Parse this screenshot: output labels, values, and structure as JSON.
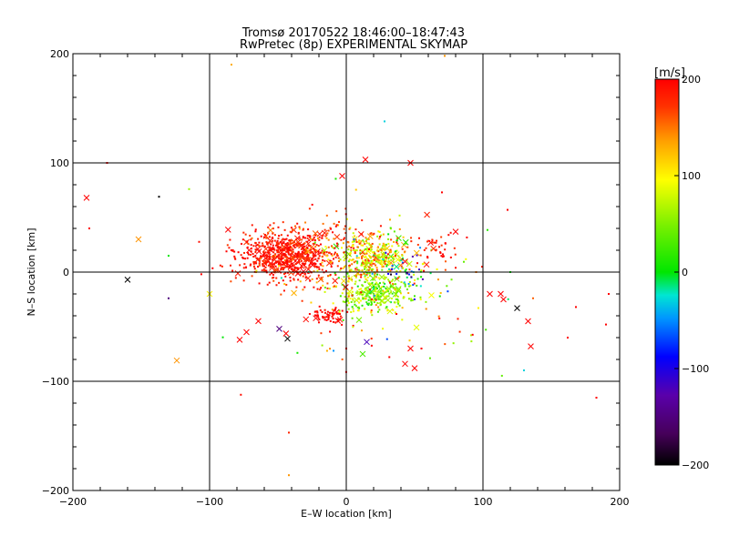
{
  "title_line1": "Tromsø 20170522 18:46:00–18:47:43",
  "title_line2": "RwPretec (8p) EXPERIMENTAL SKYMAP",
  "colorbar": {
    "unit_label": "[m/s]",
    "range": [
      -200,
      200
    ],
    "tick_values": [
      200,
      100,
      0,
      -100,
      -200
    ],
    "tick_labels": [
      "200",
      "100",
      "0",
      "−100",
      "−200"
    ],
    "colormap": "rainbow: black(-200) → purple → blue → cyan → green(0) → yellow → orange → red(200)"
  },
  "chart_data": {
    "type": "scatter",
    "xlabel": "E–W location [km]",
    "ylabel": "N–S location [km]",
    "xlim": [
      -200,
      200
    ],
    "ylim": [
      -200,
      200
    ],
    "x_ticks": [
      -200,
      -100,
      0,
      100,
      200
    ],
    "x_tick_labels": [
      "−200",
      "−100",
      "0",
      "100",
      "200"
    ],
    "y_ticks": [
      -200,
      -100,
      0,
      100,
      200
    ],
    "y_tick_labels": [
      "−200",
      "−100",
      "0",
      "100",
      "200"
    ],
    "grid": true,
    "grid_lines_x": [
      -100,
      0,
      100
    ],
    "grid_lines_y": [
      -100,
      0,
      100
    ],
    "markers": [
      "dot (small)",
      "x (large)"
    ],
    "approx_point_count": 1700,
    "clusters_estimated": [
      {
        "x": -45,
        "y": 15,
        "sx": 18,
        "sy": 11,
        "n": 650,
        "v": 190,
        "vs": 15
      },
      {
        "x": 18,
        "y": 14,
        "sx": 13,
        "sy": 11,
        "n": 320,
        "v": 90,
        "vs": 45
      },
      {
        "x": 20,
        "y": -20,
        "sx": 14,
        "sy": 9,
        "n": 280,
        "v": 60,
        "vs": 30
      },
      {
        "x": -10,
        "y": 20,
        "sx": 25,
        "sy": 18,
        "n": 180,
        "v": 170,
        "vs": 25
      },
      {
        "x": -14,
        "y": -40,
        "sx": 6,
        "sy": 4,
        "n": 60,
        "v": 200,
        "vs": 8
      },
      {
        "x": 68,
        "y": 20,
        "sx": 10,
        "sy": 8,
        "n": 40,
        "v": 190,
        "vs": 15
      },
      {
        "x": 45,
        "y": 0,
        "sx": 8,
        "sy": 8,
        "n": 50,
        "v": -20,
        "vs": 80
      },
      {
        "x": 25,
        "y": -15,
        "sx": 45,
        "sy": 35,
        "n": 120,
        "v": 120,
        "vs": 80
      }
    ],
    "outliers_estimated": [
      {
        "x": 14,
        "y": 103,
        "v": 200,
        "m": "x"
      },
      {
        "x": 47,
        "y": 100,
        "v": 200,
        "m": "x"
      },
      {
        "x": -3,
        "y": 88,
        "v": 200,
        "m": "x"
      },
      {
        "x": -175,
        "y": 100,
        "v": 200,
        "m": "."
      },
      {
        "x": -190,
        "y": 68,
        "v": 200,
        "m": "x"
      },
      {
        "x": -188,
        "y": 40,
        "v": 200,
        "m": "."
      },
      {
        "x": -152,
        "y": 30,
        "v": 140,
        "m": "x"
      },
      {
        "x": -160,
        "y": -7,
        "v": -200,
        "m": "x"
      },
      {
        "x": -130,
        "y": 15,
        "v": 0,
        "m": "."
      },
      {
        "x": -130,
        "y": -24,
        "v": -150,
        "m": "."
      },
      {
        "x": -124,
        "y": -81,
        "v": 140,
        "m": "x"
      },
      {
        "x": -137,
        "y": 69,
        "v": -200,
        "m": "."
      },
      {
        "x": -115,
        "y": 76,
        "v": 60,
        "m": "."
      },
      {
        "x": -84,
        "y": 190,
        "v": 130,
        "m": "."
      },
      {
        "x": -42,
        "y": -186,
        "v": 140,
        "m": "."
      },
      {
        "x": -42,
        "y": -147,
        "v": 180,
        "m": "."
      },
      {
        "x": -43,
        "y": -61,
        "v": -200,
        "m": "x"
      },
      {
        "x": -49,
        "y": -52,
        "v": -150,
        "m": "x"
      },
      {
        "x": -78,
        "y": -62,
        "v": 200,
        "m": "x"
      },
      {
        "x": -73,
        "y": -55,
        "v": 200,
        "m": "x"
      },
      {
        "x": 28,
        "y": 138,
        "v": -30,
        "m": "."
      },
      {
        "x": 72,
        "y": 198,
        "v": 140,
        "m": "."
      },
      {
        "x": 15,
        "y": -64,
        "v": -120,
        "m": "x"
      },
      {
        "x": 12,
        "y": -75,
        "v": 30,
        "m": "x"
      },
      {
        "x": 43,
        "y": -84,
        "v": 200,
        "m": "x"
      },
      {
        "x": 50,
        "y": -88,
        "v": 200,
        "m": "x"
      },
      {
        "x": 47,
        "y": -70,
        "v": 200,
        "m": "x"
      },
      {
        "x": 55,
        "y": -70,
        "v": 200,
        "m": "."
      },
      {
        "x": 105,
        "y": -20,
        "v": 200,
        "m": "x"
      },
      {
        "x": 115,
        "y": -25,
        "v": 200,
        "m": "x"
      },
      {
        "x": 113,
        "y": -20,
        "v": 200,
        "m": "x"
      },
      {
        "x": 125,
        "y": -33,
        "v": -200,
        "m": "x"
      },
      {
        "x": 133,
        "y": -45,
        "v": 200,
        "m": "x"
      },
      {
        "x": 135,
        "y": -68,
        "v": 200,
        "m": "x"
      },
      {
        "x": 130,
        "y": -90,
        "v": -30,
        "m": "."
      },
      {
        "x": 162,
        "y": -60,
        "v": 200,
        "m": "."
      },
      {
        "x": 168,
        "y": -32,
        "v": 200,
        "m": "."
      },
      {
        "x": 183,
        "y": -115,
        "v": 200,
        "m": "."
      },
      {
        "x": 192,
        "y": -20,
        "v": 200,
        "m": "."
      },
      {
        "x": 190,
        "y": -48,
        "v": 200,
        "m": "."
      },
      {
        "x": 120,
        "y": 0,
        "v": 0,
        "m": "."
      },
      {
        "x": 118,
        "y": 57,
        "v": 200,
        "m": "."
      },
      {
        "x": 70,
        "y": 73,
        "v": 200,
        "m": "."
      },
      {
        "x": 80,
        "y": 37,
        "v": 200,
        "m": "x"
      },
      {
        "x": -100,
        "y": -20,
        "v": 100,
        "m": "x"
      },
      {
        "x": 95,
        "y": 0,
        "v": 150,
        "m": "."
      }
    ]
  }
}
